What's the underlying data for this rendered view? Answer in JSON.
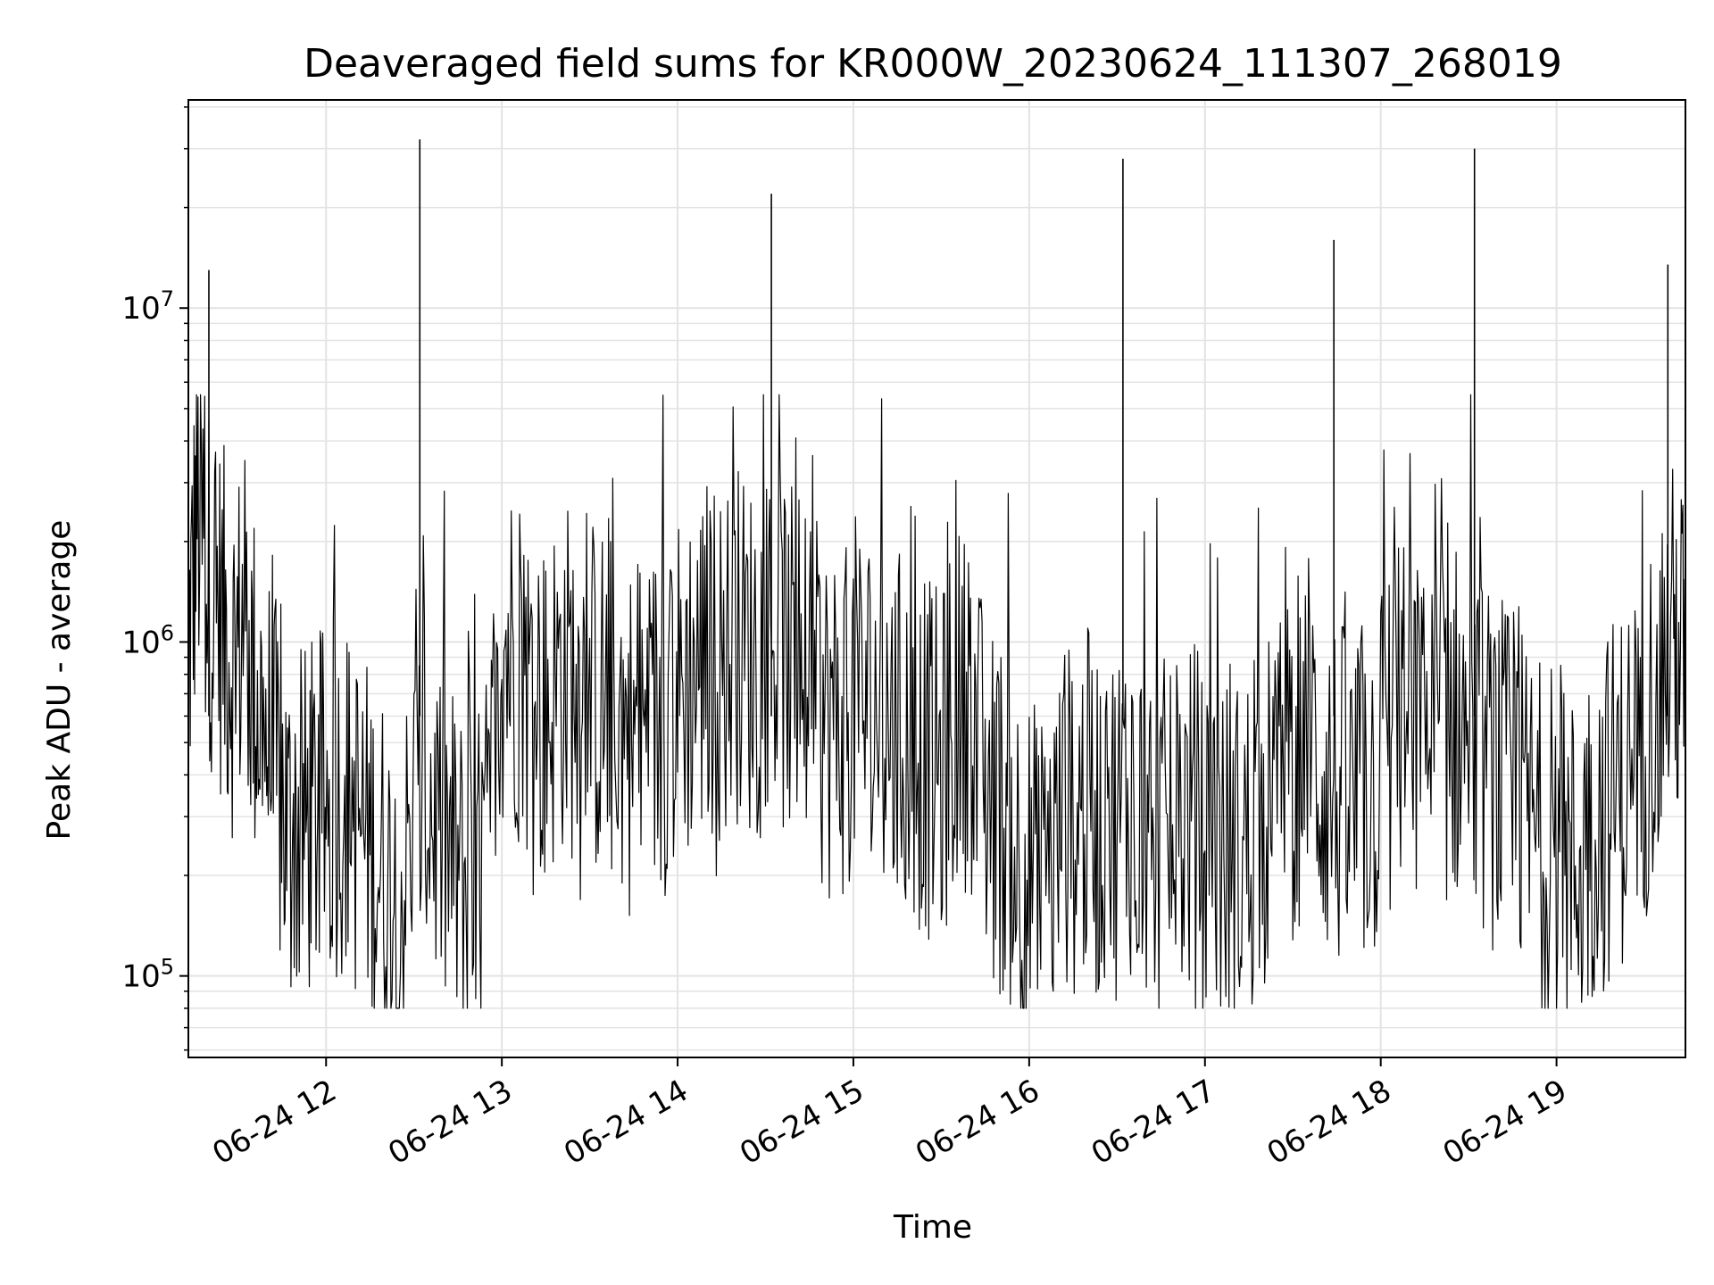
{
  "chart_data": {
    "type": "line",
    "title": "Deaveraged field sums for KR000W_20230624_111307_268019",
    "xlabel": "Time",
    "ylabel": "Peak ADU - average",
    "yscale": "log",
    "ylim": [
      57000,
      42000000
    ],
    "xlim": [
      "2023-06-24 11:13",
      "2023-06-24 19:44"
    ],
    "x_ticks": [
      {
        "value": "2023-06-24 12:00",
        "label": "06-24 12"
      },
      {
        "value": "2023-06-24 13:00",
        "label": "06-24 13"
      },
      {
        "value": "2023-06-24 14:00",
        "label": "06-24 14"
      },
      {
        "value": "2023-06-24 15:00",
        "label": "06-24 15"
      },
      {
        "value": "2023-06-24 16:00",
        "label": "06-24 16"
      },
      {
        "value": "2023-06-24 17:00",
        "label": "06-24 17"
      },
      {
        "value": "2023-06-24 18:00",
        "label": "06-24 18"
      },
      {
        "value": "2023-06-24 19:00",
        "label": "06-24 19"
      }
    ],
    "y_ticks": [
      {
        "value": 100000,
        "base": "10",
        "exp": "5"
      },
      {
        "value": 1000000,
        "base": "10",
        "exp": "6"
      },
      {
        "value": 10000000,
        "base": "10",
        "exp": "7"
      }
    ],
    "grid": true,
    "line_color": "#000000",
    "series": [
      {
        "x": [
          "2023-06-24 11:13",
          "2023-06-24 11:16",
          "2023-06-24 11:20",
          "2023-06-24 11:24",
          "2023-06-24 11:28",
          "2023-06-24 11:32",
          "2023-06-24 11:36",
          "2023-06-24 11:40",
          "2023-06-24 11:44",
          "2023-06-24 11:48",
          "2023-06-24 11:52",
          "2023-06-24 11:56",
          "2023-06-24 12:00",
          "2023-06-24 12:05",
          "2023-06-24 12:10",
          "2023-06-24 12:15",
          "2023-06-24 12:20",
          "2023-06-24 12:25",
          "2023-06-24 12:30",
          "2023-06-24 12:35",
          "2023-06-24 12:40",
          "2023-06-24 12:45",
          "2023-06-24 12:50",
          "2023-06-24 12:55",
          "2023-06-24 13:00",
          "2023-06-24 13:05",
          "2023-06-24 13:10",
          "2023-06-24 13:15",
          "2023-06-24 13:20",
          "2023-06-24 13:25",
          "2023-06-24 13:30",
          "2023-06-24 13:35",
          "2023-06-24 13:40",
          "2023-06-24 13:45",
          "2023-06-24 13:50",
          "2023-06-24 13:55",
          "2023-06-24 14:00",
          "2023-06-24 14:05",
          "2023-06-24 14:10",
          "2023-06-24 14:15",
          "2023-06-24 14:20",
          "2023-06-24 14:25",
          "2023-06-24 14:30",
          "2023-06-24 14:35",
          "2023-06-24 14:40",
          "2023-06-24 14:45",
          "2023-06-24 14:50",
          "2023-06-24 14:55",
          "2023-06-24 15:00",
          "2023-06-24 15:05",
          "2023-06-24 15:10",
          "2023-06-24 15:15",
          "2023-06-24 15:20",
          "2023-06-24 15:25",
          "2023-06-24 15:30",
          "2023-06-24 15:35",
          "2023-06-24 15:40",
          "2023-06-24 15:45",
          "2023-06-24 15:50",
          "2023-06-24 15:55",
          "2023-06-24 16:00",
          "2023-06-24 16:05",
          "2023-06-24 16:10",
          "2023-06-24 16:15",
          "2023-06-24 16:20",
          "2023-06-24 16:25",
          "2023-06-24 16:30",
          "2023-06-24 16:35",
          "2023-06-24 16:40",
          "2023-06-24 16:45",
          "2023-06-24 16:50",
          "2023-06-24 16:55",
          "2023-06-24 17:00",
          "2023-06-24 17:05",
          "2023-06-24 17:10",
          "2023-06-24 17:15",
          "2023-06-24 17:20",
          "2023-06-24 17:25",
          "2023-06-24 17:30",
          "2023-06-24 17:35",
          "2023-06-24 17:40",
          "2023-06-24 17:45",
          "2023-06-24 17:50",
          "2023-06-24 17:55",
          "2023-06-24 18:00",
          "2023-06-24 18:05",
          "2023-06-24 18:10",
          "2023-06-24 18:15",
          "2023-06-24 18:20",
          "2023-06-24 18:25",
          "2023-06-24 18:30",
          "2023-06-24 18:35",
          "2023-06-24 18:40",
          "2023-06-24 18:45",
          "2023-06-24 18:50",
          "2023-06-24 18:55",
          "2023-06-24 19:00",
          "2023-06-24 19:05",
          "2023-06-24 19:10",
          "2023-06-24 19:15",
          "2023-06-24 19:20",
          "2023-06-24 19:25",
          "2023-06-24 19:30",
          "2023-06-24 19:35",
          "2023-06-24 19:40",
          "2023-06-24 19:44"
        ],
        "y": [
          900000,
          2500000,
          1500000,
          1200000,
          900000,
          1100000,
          700000,
          500000,
          350000,
          250000,
          280000,
          300000,
          320000,
          350000,
          300000,
          250000,
          200000,
          150000,
          300000,
          350000,
          250000,
          200000,
          150000,
          250000,
          1000000,
          900000,
          700000,
          600000,
          800000,
          750000,
          700000,
          650000,
          600000,
          500000,
          550000,
          600000,
          700000,
          800000,
          900000,
          850000,
          1000000,
          900000,
          1100000,
          950000,
          800000,
          700000,
          600000,
          550000,
          700000,
          650000,
          600000,
          550000,
          500000,
          450000,
          400000,
          650000,
          600000,
          350000,
          300000,
          250000,
          200000,
          180000,
          250000,
          300000,
          320000,
          280000,
          300000,
          350000,
          300000,
          250000,
          280000,
          300000,
          260000,
          240000,
          220000,
          250000,
          300000,
          350000,
          450000,
          550000,
          400000,
          350000,
          300000,
          350000,
          400000,
          600000,
          550000,
          500000,
          550000,
          600000,
          500000,
          450000,
          400000,
          350000,
          300000,
          250000,
          220000,
          200000,
          250000,
          300000,
          350000,
          400000,
          500000,
          800000,
          1000000,
          900000
        ]
      }
    ],
    "spikes": [
      {
        "x": "2023-06-24 11:20",
        "y": 13000000
      },
      {
        "x": "2023-06-24 12:32",
        "y": 32000000
      },
      {
        "x": "2023-06-24 14:32",
        "y": 22000000
      },
      {
        "x": "2023-06-24 16:32",
        "y": 28000000
      },
      {
        "x": "2023-06-24 17:44",
        "y": 16000000
      },
      {
        "x": "2023-06-24 18:32",
        "y": 30000000
      },
      {
        "x": "2023-06-24 19:38",
        "y": 13500000
      }
    ]
  }
}
